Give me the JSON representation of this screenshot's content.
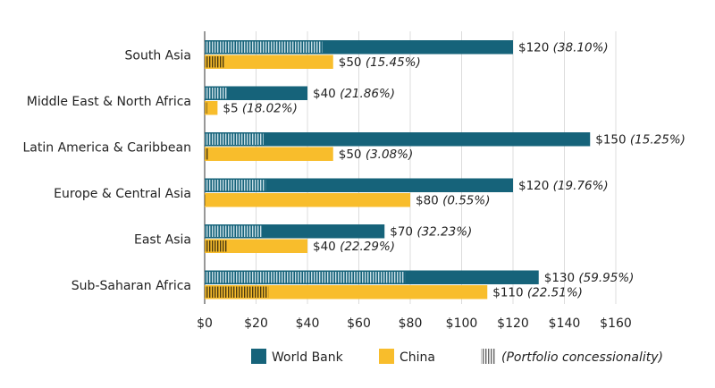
{
  "chart_data": {
    "type": "bar",
    "orientation": "horizontal",
    "categories": [
      "South Asia",
      "Middle East & North Africa",
      "Latin America & Caribbean",
      "Europe & Central Asia",
      "East Asia",
      "Sub-Saharan Africa"
    ],
    "series": [
      {
        "name": "World Bank",
        "color": "#16637a",
        "values": [
          120,
          40,
          150,
          120,
          70,
          130
        ],
        "concessionality_pct": [
          38.1,
          21.86,
          15.25,
          19.76,
          32.23,
          59.95
        ],
        "labels": [
          "$120",
          "$40",
          "$150",
          "$120",
          "$70",
          "$130"
        ],
        "pct_labels": [
          "(38.10%)",
          "(21.86%)",
          "(15.25%)",
          "(19.76%)",
          "(32.23%)",
          "(59.95%)"
        ]
      },
      {
        "name": "China",
        "color": "#f8bd2c",
        "values": [
          50,
          5,
          50,
          80,
          40,
          110
        ],
        "concessionality_pct": [
          15.45,
          18.02,
          3.08,
          0.55,
          22.29,
          22.51
        ],
        "labels": [
          "$50",
          "$5",
          "$50",
          "$80",
          "$40",
          "$110"
        ],
        "pct_labels": [
          "(15.45%)",
          "(18.02%)",
          "(3.08%)",
          "(0.55%)",
          "(22.29%)",
          "(22.51%)"
        ]
      }
    ],
    "xaxis": {
      "ticks": [
        0,
        20,
        40,
        60,
        80,
        100,
        120,
        140,
        160
      ],
      "tick_labels": [
        "$0",
        "$20",
        "$40",
        "$60",
        "$80",
        "$100",
        "$120",
        "$140",
        "$160"
      ],
      "range": [
        0,
        160
      ]
    },
    "legend": {
      "position": "bottom",
      "items": [
        {
          "key": "wb",
          "label": "World Bank",
          "color": "#16637a"
        },
        {
          "key": "cn",
          "label": "China",
          "color": "#f8bd2c"
        },
        {
          "key": "pc",
          "label": "(Portfolio concessionality)",
          "pattern": "vertical-stripes"
        }
      ]
    },
    "grid": "vertical"
  }
}
